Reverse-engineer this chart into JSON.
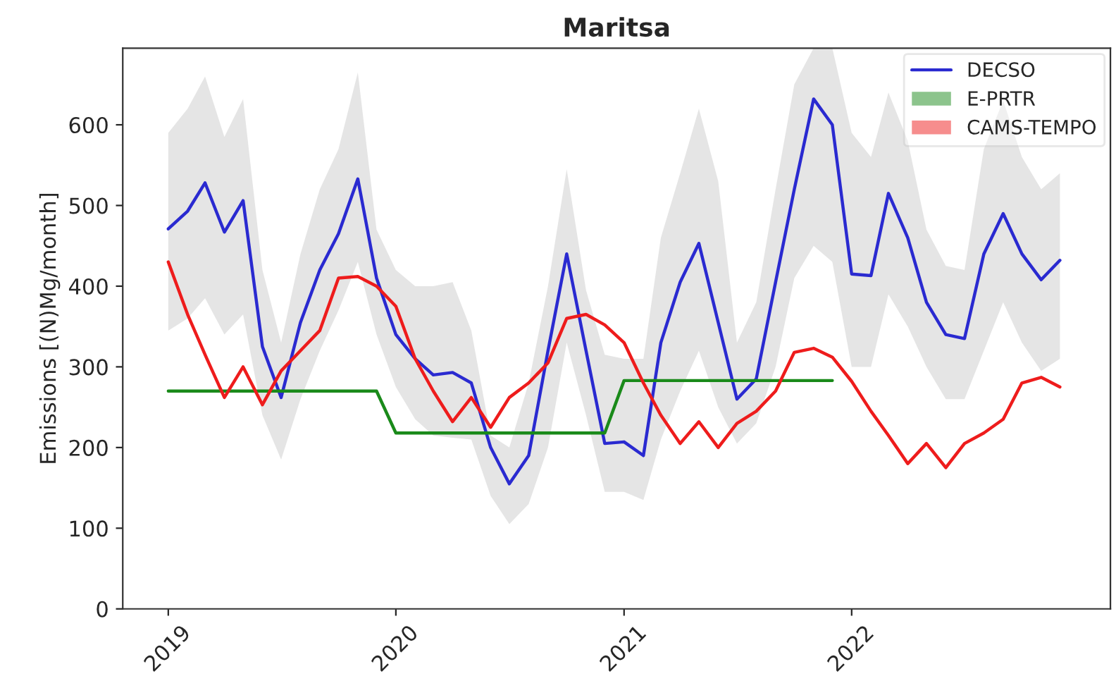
{
  "chart_data": {
    "type": "line",
    "title": "Maritsa",
    "ylabel": "Emissions [(N)Mg/month]",
    "x": [
      "2019-01",
      "2019-02",
      "2019-03",
      "2019-04",
      "2019-05",
      "2019-06",
      "2019-07",
      "2019-08",
      "2019-09",
      "2019-10",
      "2019-11",
      "2019-12",
      "2020-01",
      "2020-02",
      "2020-03",
      "2020-04",
      "2020-05",
      "2020-06",
      "2020-07",
      "2020-08",
      "2020-09",
      "2020-10",
      "2020-11",
      "2020-12",
      "2021-01",
      "2021-02",
      "2021-03",
      "2021-04",
      "2021-05",
      "2021-06",
      "2021-07",
      "2021-08",
      "2021-09",
      "2021-10",
      "2021-11",
      "2021-12",
      "2022-01",
      "2022-02",
      "2022-03",
      "2022-04",
      "2022-05",
      "2022-06",
      "2022-07",
      "2022-08",
      "2022-09",
      "2022-10",
      "2022-11",
      "2022-12"
    ],
    "xlim": [
      "2018-10-20",
      "2023-02-20"
    ],
    "xticks": [
      {
        "value": "2019-01-01",
        "label": "2019"
      },
      {
        "value": "2020-01-01",
        "label": "2020"
      },
      {
        "value": "2021-01-01",
        "label": "2021"
      },
      {
        "value": "2022-01-01",
        "label": "2022"
      }
    ],
    "ylim": [
      0,
      695
    ],
    "yticks": [
      0,
      100,
      200,
      300,
      400,
      500,
      600
    ],
    "legend": "top right",
    "grid": false,
    "series": [
      {
        "name": "DECSO",
        "color": "#2a2ad0",
        "values": [
          471,
          493,
          528,
          467,
          506,
          325,
          262,
          355,
          420,
          465,
          533,
          410,
          340,
          310,
          290,
          293,
          280,
          200,
          155,
          190,
          320,
          440,
          320,
          205,
          207,
          190,
          330,
          405,
          453,
          355,
          260,
          285,
          405,
          520,
          632,
          600,
          415,
          413,
          515,
          460,
          380,
          340,
          335,
          440,
          490,
          440,
          408,
          432
        ],
        "upper": [
          590,
          620,
          660,
          585,
          632,
          420,
          330,
          440,
          520,
          570,
          665,
          470,
          420,
          400,
          400,
          405,
          345,
          215,
          200,
          280,
          400,
          545,
          395,
          315,
          310,
          310,
          460,
          540,
          620,
          530,
          330,
          380,
          520,
          650,
          695,
          695,
          590,
          560,
          640,
          580,
          470,
          425,
          420,
          570,
          630,
          560,
          520,
          540
        ],
        "lower": [
          345,
          360,
          385,
          340,
          365,
          240,
          185,
          260,
          320,
          370,
          430,
          340,
          275,
          235,
          215,
          212,
          210,
          140,
          105,
          130,
          200,
          330,
          240,
          145,
          145,
          135,
          210,
          270,
          320,
          250,
          205,
          230,
          300,
          410,
          450,
          430,
          300,
          300,
          390,
          350,
          300,
          260,
          260,
          320,
          380,
          330,
          295,
          310
        ]
      },
      {
        "name": "E-PRTR",
        "color": "#1a8a1a",
        "values": [
          270,
          270,
          270,
          270,
          270,
          270,
          270,
          270,
          270,
          270,
          270,
          270,
          218,
          218,
          218,
          218,
          218,
          218,
          218,
          218,
          218,
          218,
          218,
          218,
          283,
          283,
          283,
          283,
          283,
          283,
          283,
          283,
          283,
          283,
          283,
          283,
          null,
          null,
          null,
          null,
          null,
          null,
          null,
          null,
          null,
          null,
          null,
          null
        ]
      },
      {
        "name": "CAMS-TEMPO",
        "color": "#ee1c1c",
        "values": [
          430,
          365,
          315,
          262,
          300,
          253,
          295,
          320,
          345,
          410,
          412,
          400,
          375,
          310,
          270,
          232,
          262,
          225,
          262,
          280,
          305,
          360,
          365,
          352,
          330,
          280,
          240,
          205,
          232,
          200,
          230,
          245,
          270,
          318,
          323,
          312,
          282,
          245,
          215,
          180,
          205,
          175,
          205,
          218,
          235,
          280,
          287,
          275
        ]
      }
    ]
  }
}
